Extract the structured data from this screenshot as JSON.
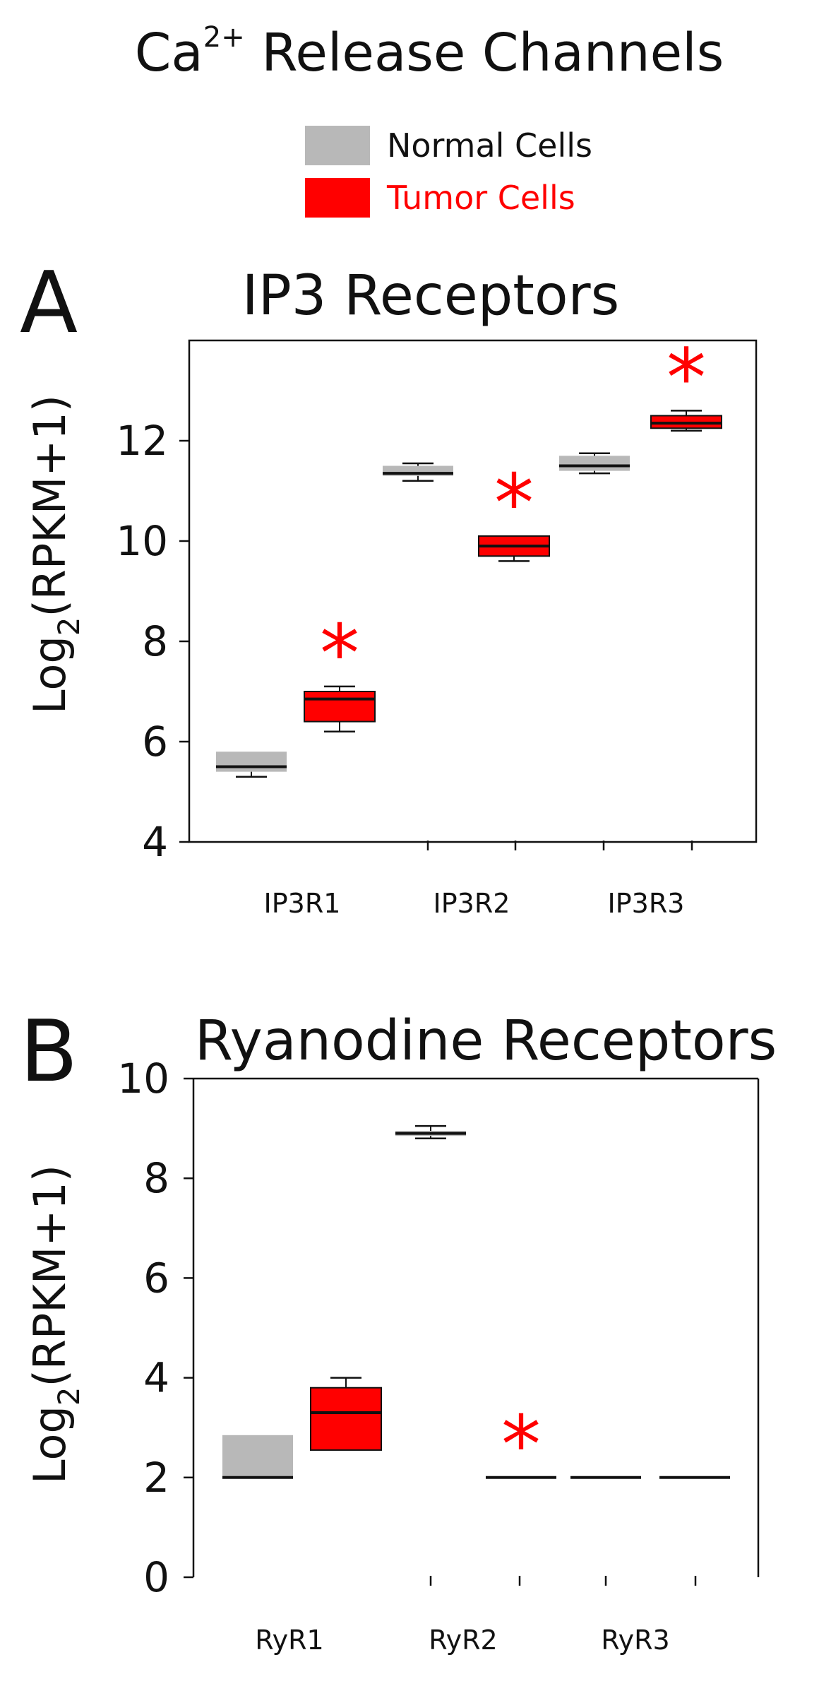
{
  "figure": {
    "title": {
      "main": "Ca",
      "superscript": "2+",
      "rest": " Release Channels"
    },
    "legend": [
      {
        "label": "Normal Cells",
        "color": "#b8b8b8",
        "text_color": "#111111"
      },
      {
        "label": "Tumor Cells",
        "color": "#ff0000",
        "text_color": "#ff0000"
      }
    ]
  },
  "chart_data": [
    {
      "type": "boxplot",
      "panel": "A",
      "title": "IP3 Receptors",
      "ylabel": {
        "main": "Log",
        "subscript": "2",
        "rest": "(RPKM+1)"
      },
      "ylim": [
        4,
        14
      ],
      "yticks": [
        4,
        6,
        8,
        10,
        12
      ],
      "categories": [
        "IP3R1",
        "IP3R2",
        "IP3R3"
      ],
      "series": [
        {
          "name": "Normal Cells",
          "color": "#b8b8b8",
          "boxes": [
            {
              "category": "IP3R1",
              "min": 5.3,
              "q1": 5.4,
              "median": 5.5,
              "q3": 5.8,
              "max": 5.8
            },
            {
              "category": "IP3R2",
              "min": 11.2,
              "q1": 11.3,
              "median": 11.35,
              "q3": 11.5,
              "max": 11.55
            },
            {
              "category": "IP3R3",
              "min": 11.35,
              "q1": 11.4,
              "median": 11.5,
              "q3": 11.7,
              "max": 11.75
            }
          ]
        },
        {
          "name": "Tumor Cells",
          "color": "#ff0000",
          "boxes": [
            {
              "category": "IP3R1",
              "min": 6.2,
              "q1": 6.4,
              "median": 6.85,
              "q3": 7.0,
              "max": 7.1,
              "significant": true
            },
            {
              "category": "IP3R2",
              "min": 9.6,
              "q1": 9.7,
              "median": 9.9,
              "q3": 10.1,
              "max": 10.1,
              "significant": true
            },
            {
              "category": "IP3R3",
              "min": 12.2,
              "q1": 12.25,
              "median": 12.35,
              "q3": 12.5,
              "max": 12.6,
              "significant": true
            }
          ]
        }
      ],
      "significance_marker": "*"
    },
    {
      "type": "boxplot",
      "panel": "B",
      "title": "Ryanodine Receptors",
      "ylabel": {
        "main": "Log",
        "subscript": "2",
        "rest": "(RPKM+1)"
      },
      "ylim": [
        0,
        10
      ],
      "yticks": [
        0,
        2,
        4,
        6,
        8,
        10
      ],
      "categories": [
        "RyR1",
        "RyR2",
        "RyR3"
      ],
      "series": [
        {
          "name": "Normal Cells",
          "color": "#b8b8b8",
          "boxes": [
            {
              "category": "RyR1",
              "min": 2.0,
              "q1": 2.0,
              "median": 2.0,
              "q3": 2.85,
              "max": 2.85
            },
            {
              "category": "RyR2",
              "min": 8.8,
              "q1": 8.85,
              "median": 8.9,
              "q3": 8.95,
              "max": 9.05
            },
            {
              "category": "RyR3",
              "min": 2.0,
              "q1": 2.0,
              "median": 2.0,
              "q3": 2.0,
              "max": 2.0
            }
          ]
        },
        {
          "name": "Tumor Cells",
          "color": "#ff0000",
          "boxes": [
            {
              "category": "RyR1",
              "min": 2.55,
              "q1": 2.55,
              "median": 3.3,
              "q3": 3.8,
              "max": 4.0
            },
            {
              "category": "RyR2",
              "min": 2.0,
              "q1": 2.0,
              "median": 2.0,
              "q3": 2.0,
              "max": 2.0,
              "significant": true
            },
            {
              "category": "RyR3",
              "min": 2.0,
              "q1": 2.0,
              "median": 2.0,
              "q3": 2.0,
              "max": 2.0
            }
          ]
        }
      ],
      "significance_marker": "*"
    }
  ]
}
